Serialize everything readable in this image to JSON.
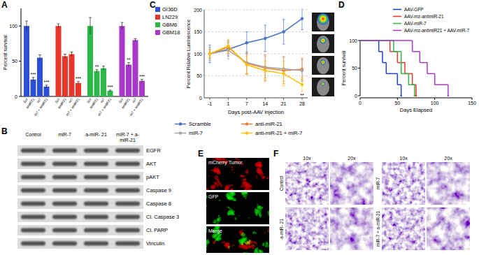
{
  "panels": [
    "A",
    "B",
    "C",
    "D",
    "E",
    "F"
  ],
  "chart_data": [
    {
      "type": "bar",
      "y_label": "Percent survival",
      "categories": [
        "Scr",
        "amiR21",
        "m7",
        "m7 + amiR21"
      ],
      "ylim": [
        0,
        125
      ],
      "yticks": [
        0,
        50,
        100
      ],
      "legend": "right",
      "series": [
        {
          "name": "GI36D",
          "color": "#2e4fd9",
          "values": [
            100,
            24,
            55,
            14
          ],
          "errors": [
            7,
            3,
            4,
            2
          ],
          "annotations": [
            null,
            "***",
            null,
            "***"
          ]
        },
        {
          "name": "LN229",
          "color": "#e8372a",
          "values": [
            100,
            57,
            60,
            19
          ],
          "errors": [
            3,
            3,
            3,
            2
          ],
          "annotations": [
            null,
            null,
            null,
            "***"
          ]
        },
        {
          "name": "GBM6",
          "color": "#2db84a",
          "values": [
            100,
            36,
            40,
            8
          ],
          "errors": [
            12,
            2,
            3,
            1
          ],
          "annotations": [
            null,
            "**",
            null,
            "***"
          ]
        },
        {
          "name": "GBM18",
          "color": "#a838c9",
          "values": [
            100,
            45,
            80,
            22
          ],
          "errors": [
            5,
            3,
            2,
            2
          ],
          "annotations": [
            null,
            "**",
            null,
            "***"
          ]
        }
      ]
    },
    {
      "type": "line",
      "x_label": "Days post-AAV injection",
      "y_label": "Percent Relative Luminescence",
      "categories": [
        "-1",
        "1",
        "7",
        "14",
        "21",
        "28"
      ],
      "ylim": [
        0,
        200
      ],
      "yticks": [
        0,
        50,
        100,
        150,
        200
      ],
      "grid": true,
      "legend": "bottom",
      "marker": "circle",
      "series": [
        {
          "name": "Scramble",
          "color": "#4472c4",
          "values": [
            100,
            110,
            125,
            135,
            150,
            180
          ],
          "errors": [
            20,
            15,
            25,
            30,
            28,
            25
          ],
          "annotations": [
            null,
            null,
            null,
            null,
            null,
            null
          ]
        },
        {
          "name": "anti-miR-21",
          "color": "#ed7d31",
          "values": [
            100,
            115,
            78,
            68,
            62,
            65
          ],
          "errors": [
            10,
            15,
            25,
            30,
            30,
            25
          ],
          "annotations": [
            null,
            null,
            null,
            null,
            null,
            null
          ]
        },
        {
          "name": "miR-7",
          "color": "#a5a5a5",
          "values": [
            100,
            108,
            80,
            70,
            66,
            62
          ],
          "errors": [
            15,
            20,
            25,
            25,
            28,
            25
          ],
          "annotations": [
            null,
            null,
            null,
            null,
            null,
            null
          ]
        },
        {
          "name": "anti-miR-21 + miR-7",
          "color": "#ffc000",
          "values": [
            100,
            118,
            75,
            62,
            55,
            30
          ],
          "errors": [
            10,
            15,
            20,
            22,
            28,
            15
          ],
          "annotations": [
            null,
            null,
            null,
            null,
            null,
            "**"
          ]
        }
      ]
    },
    {
      "type": "step",
      "x_label": "Days Elapsed",
      "y_label": "Percent survival",
      "xlim": [
        0,
        150
      ],
      "xticks": [
        0,
        50,
        100,
        150
      ],
      "ylim": [
        0,
        100
      ],
      "yticks": [
        0,
        50,
        100
      ],
      "legend": "top-right",
      "series": [
        {
          "name": "AAV-GFP",
          "color": "#1f3fd6",
          "x": [
            0,
            25,
            30,
            35,
            50,
            55
          ],
          "values": [
            100,
            80,
            60,
            40,
            20,
            0
          ]
        },
        {
          "name": "AAV-mz-antimiR-21",
          "color": "#e8372a",
          "x": [
            0,
            40,
            50,
            60,
            70,
            75
          ],
          "values": [
            100,
            80,
            60,
            40,
            20,
            0
          ]
        },
        {
          "name": "AAV-miR-7",
          "color": "#2db84a",
          "x": [
            0,
            45,
            55,
            65,
            73
          ],
          "values": [
            100,
            80,
            40,
            20,
            0
          ]
        },
        {
          "name": "AAV-mz-antimiR21 + AAV-miR-7",
          "color": "#a838c9",
          "x": [
            0,
            70,
            80,
            90,
            100,
            118
          ],
          "values": [
            100,
            80,
            60,
            40,
            20,
            0
          ]
        }
      ]
    }
  ],
  "blot": {
    "columns": [
      "Control",
      "miR-7",
      "a-miR- 21",
      "miR-7 + a-miR-21"
    ],
    "rows": [
      "EGFR",
      "AKT",
      "pAKT",
      "Caspase 9",
      "Caspase 8",
      "Cl. Caspase 3",
      "Cl. PARP",
      "Vinculin"
    ]
  },
  "fluorescence": {
    "labels": [
      "mCherry Tumor",
      "GFP",
      "Merge"
    ]
  },
  "histology": {
    "columns": [
      "10x",
      "20x"
    ],
    "groups": [
      "Control",
      "miR-7",
      "a-miR- 21",
      "miR-7 + a-miR-21"
    ]
  }
}
